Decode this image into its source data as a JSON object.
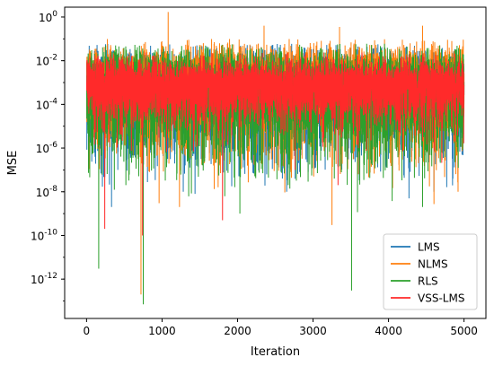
{
  "chart_data": {
    "type": "line",
    "title": "",
    "xlabel": "Iteration",
    "ylabel": "MSE",
    "yscale": "log",
    "xlim": [
      -290,
      5290
    ],
    "ylim_exp": [
      -13.8,
      0.45
    ],
    "x_ticks": [
      0,
      1000,
      2000,
      3000,
      4000,
      5000
    ],
    "x_tick_labels": [
      "0",
      "1000",
      "2000",
      "3000",
      "4000",
      "5000"
    ],
    "y_tick_exponents": [
      0,
      -2,
      -4,
      -6,
      -8,
      -10,
      -12
    ],
    "y_tick_labels": [
      "0",
      "-2",
      "-4",
      "-6",
      "-8",
      "-10",
      "-12"
    ],
    "y_tick_base": "10",
    "grid": false,
    "legend_position": "lower-right",
    "n_points": 5000,
    "series": [
      {
        "name": "LMS",
        "color": "#1f77b4",
        "draw_order": 0,
        "typical_mse_range": [
          1e-06,
          0.03
        ],
        "median_mse": 0.0005,
        "spikes": [
          {
            "iteration": 330,
            "mse": 2e-09
          },
          {
            "iteration": 1280,
            "mse": 1e-08
          },
          {
            "iteration": 1840,
            "mse": 1e-06
          },
          {
            "iteration": 2650,
            "mse": 1e-08
          },
          {
            "iteration": 4270,
            "mse": 5e-09
          },
          {
            "iteration": 4600,
            "mse": 1e-08
          }
        ]
      },
      {
        "name": "NLMS",
        "color": "#ff7f0e",
        "draw_order": 1,
        "typical_mse_range": [
          2e-06,
          0.05
        ],
        "median_mse": 0.002,
        "spikes": [
          {
            "iteration": 720,
            "mse": 2e-13
          },
          {
            "iteration": 1080,
            "mse": 1.7
          },
          {
            "iteration": 960,
            "mse": 3e-09
          },
          {
            "iteration": 1230,
            "mse": 2e-09
          },
          {
            "iteration": 3250,
            "mse": 3e-10
          },
          {
            "iteration": 4920,
            "mse": 1e-08
          },
          {
            "iteration": 2350,
            "mse": 0.4
          },
          {
            "iteration": 3350,
            "mse": 0.35
          },
          {
            "iteration": 4450,
            "mse": 0.4
          }
        ]
      },
      {
        "name": "RLS",
        "color": "#2ca02c",
        "draw_order": 2,
        "typical_mse_range": [
          1e-06,
          0.03
        ],
        "median_mse": 0.0005,
        "spikes": [
          {
            "iteration": 160,
            "mse": 3e-12
          },
          {
            "iteration": 520,
            "mse": 2e-08
          },
          {
            "iteration": 750,
            "mse": 7e-14
          },
          {
            "iteration": 2030,
            "mse": 1e-09
          },
          {
            "iteration": 3510,
            "mse": 3e-13
          },
          {
            "iteration": 4450,
            "mse": 2e-09
          },
          {
            "iteration": 2670,
            "mse": 2e-08
          }
        ]
      },
      {
        "name": "VSS-LMS",
        "color": "#ff2a2a",
        "draw_order": 3,
        "typical_mse_range": [
          2e-05,
          0.012
        ],
        "median_mse": 0.0008,
        "spikes": [
          {
            "iteration": 240,
            "mse": 2e-10
          },
          {
            "iteration": 740,
            "mse": 1e-10
          },
          {
            "iteration": 1800,
            "mse": 5e-10
          },
          {
            "iteration": 2760,
            "mse": 1e-07
          },
          {
            "iteration": 3330,
            "mse": 2e-08
          }
        ]
      }
    ]
  }
}
